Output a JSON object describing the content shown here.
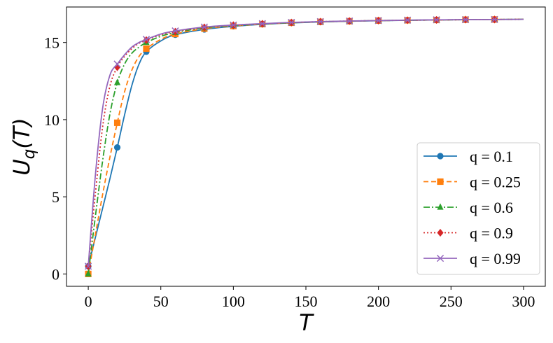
{
  "chart_data": {
    "type": "line",
    "title": "",
    "xlabel": "T",
    "ylabel": "U_q(T)",
    "xlim": [
      -15,
      315
    ],
    "ylim": [
      -0.8,
      17.3
    ],
    "xticks": [
      0,
      50,
      100,
      150,
      200,
      250,
      300
    ],
    "yticks": [
      0,
      5,
      10,
      15
    ],
    "grid": false,
    "legend_position": "lower-right",
    "series": [
      {
        "name": "q = 0.1",
        "color": "#1f77b4",
        "linestyle": "solid",
        "marker": "circle",
        "x": [
          0,
          5,
          10,
          15,
          20,
          25,
          30,
          35,
          40,
          50,
          60,
          80,
          100,
          120,
          140,
          160,
          180,
          200,
          220,
          240,
          260,
          280,
          300
        ],
        "y": [
          0.5,
          2.4,
          4.3,
          6.2,
          8.2,
          10.3,
          12.2,
          13.6,
          14.4,
          15.1,
          15.5,
          15.85,
          16.05,
          16.18,
          16.27,
          16.33,
          16.38,
          16.41,
          16.44,
          16.46,
          16.48,
          16.49,
          16.5
        ],
        "marker_x": [
          0,
          20,
          40,
          60,
          80,
          100,
          120,
          140,
          160,
          180,
          200,
          220,
          240,
          260,
          280
        ],
        "marker_y": [
          0.5,
          8.2,
          14.4,
          15.5,
          15.85,
          16.05,
          16.18,
          16.27,
          16.33,
          16.38,
          16.41,
          16.44,
          16.46,
          16.48,
          16.49
        ]
      },
      {
        "name": "q = 0.25",
        "color": "#ff7f0e",
        "linestyle": "dashed",
        "marker": "square",
        "x": [
          0,
          5,
          10,
          15,
          20,
          25,
          30,
          35,
          40,
          50,
          60,
          80,
          100,
          120,
          140,
          160,
          180,
          200,
          220,
          240,
          260,
          280,
          300
        ],
        "y": [
          0.0,
          2.6,
          5.2,
          7.6,
          9.8,
          11.8,
          13.2,
          14.1,
          14.6,
          15.2,
          15.55,
          15.9,
          16.07,
          16.19,
          16.28,
          16.34,
          16.38,
          16.42,
          16.44,
          16.46,
          16.48,
          16.49,
          16.5
        ],
        "marker_x": [
          0,
          20,
          40,
          60,
          80,
          100,
          120,
          140,
          160,
          180,
          200,
          220,
          240,
          260,
          280
        ],
        "marker_y": [
          0.0,
          9.8,
          14.6,
          15.55,
          15.9,
          16.07,
          16.19,
          16.28,
          16.34,
          16.38,
          16.42,
          16.44,
          16.46,
          16.48,
          16.49
        ]
      },
      {
        "name": "q = 0.6",
        "color": "#2ca02c",
        "linestyle": "dashdot",
        "marker": "triangle",
        "x": [
          0,
          5,
          10,
          15,
          20,
          25,
          30,
          35,
          40,
          50,
          60,
          80,
          100,
          120,
          140,
          160,
          180,
          200,
          220,
          240,
          260,
          280,
          300
        ],
        "y": [
          0.0,
          3.8,
          7.4,
          10.4,
          12.4,
          13.6,
          14.3,
          14.7,
          15.0,
          15.4,
          15.65,
          15.95,
          16.1,
          16.2,
          16.28,
          16.34,
          16.38,
          16.42,
          16.44,
          16.46,
          16.48,
          16.49,
          16.5
        ],
        "marker_x": [
          0,
          20,
          40,
          60,
          80,
          100,
          120,
          140,
          160,
          180,
          200,
          220,
          240,
          260,
          280
        ],
        "marker_y": [
          0.0,
          12.4,
          15.0,
          15.65,
          15.95,
          16.1,
          16.2,
          16.28,
          16.34,
          16.38,
          16.42,
          16.44,
          16.46,
          16.48,
          16.49
        ]
      },
      {
        "name": "q = 0.9",
        "color": "#d62728",
        "linestyle": "dotted",
        "marker": "diamond",
        "x": [
          0,
          5,
          10,
          15,
          20,
          25,
          30,
          35,
          40,
          50,
          60,
          80,
          100,
          120,
          140,
          160,
          180,
          200,
          220,
          240,
          260,
          280,
          300
        ],
        "y": [
          0.5,
          5.3,
          9.6,
          12.2,
          13.4,
          14.1,
          14.6,
          14.95,
          15.15,
          15.5,
          15.7,
          15.98,
          16.12,
          16.21,
          16.29,
          16.35,
          16.39,
          16.42,
          16.44,
          16.46,
          16.48,
          16.49,
          16.5
        ],
        "marker_x": [
          0,
          20,
          40,
          60,
          80,
          100,
          120,
          140,
          160,
          180,
          200,
          220,
          240,
          260,
          280
        ],
        "marker_y": [
          0.5,
          13.4,
          15.15,
          15.7,
          15.98,
          16.12,
          16.21,
          16.29,
          16.35,
          16.39,
          16.42,
          16.44,
          16.46,
          16.48,
          16.49
        ]
      },
      {
        "name": "q = 0.99",
        "color": "#9467bd",
        "linestyle": "solid",
        "marker": "x",
        "x": [
          0,
          5,
          10,
          15,
          20,
          25,
          30,
          35,
          40,
          50,
          60,
          80,
          100,
          120,
          140,
          160,
          180,
          200,
          220,
          240,
          260,
          280,
          300
        ],
        "y": [
          0.5,
          6.5,
          10.8,
          12.9,
          13.6,
          14.2,
          14.7,
          15.0,
          15.2,
          15.55,
          15.75,
          16.0,
          16.13,
          16.22,
          16.3,
          16.35,
          16.39,
          16.42,
          16.45,
          16.47,
          16.48,
          16.49,
          16.5
        ],
        "marker_x": [
          0,
          20,
          40,
          60,
          80,
          100,
          120,
          140,
          160,
          180,
          200,
          220,
          240,
          260,
          280
        ],
        "marker_y": [
          0.5,
          13.6,
          15.2,
          15.75,
          16.0,
          16.13,
          16.22,
          16.3,
          16.35,
          16.39,
          16.42,
          16.45,
          16.47,
          16.48,
          16.49
        ]
      }
    ]
  }
}
